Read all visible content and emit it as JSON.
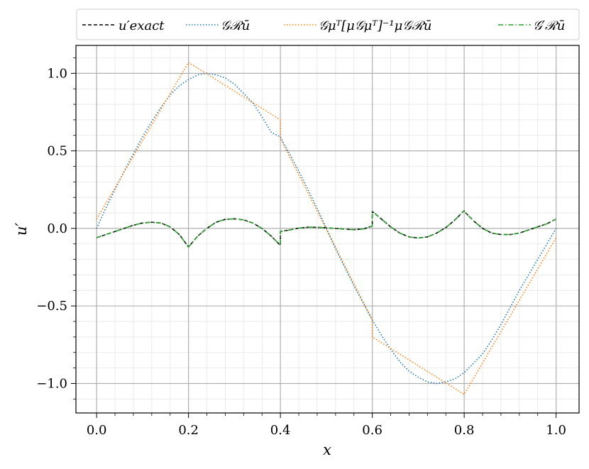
{
  "chart_data": {
    "type": "line",
    "title": "",
    "xlabel": "x",
    "ylabel": "u′",
    "xlim": [
      -0.045,
      1.05
    ],
    "ylim": [
      -1.19,
      1.18
    ],
    "grid": {
      "major": true,
      "minor": true
    },
    "legend_position": "top",
    "xticks": [
      0.0,
      0.2,
      0.4,
      0.6,
      0.8,
      1.0
    ],
    "xtick_labels": [
      "0.0",
      "0.2",
      "0.4",
      "0.6",
      "0.8",
      "1.0"
    ],
    "yticks": [
      -1.0,
      -0.5,
      0.0,
      0.5,
      1.0
    ],
    "ytick_labels": [
      "−1.0",
      "−0.5",
      "0.0",
      "0.5",
      "1.0"
    ],
    "colors": {
      "exact": "#000000",
      "GRu": "#1f77b4",
      "projected": "#ff7f0e",
      "Gprime": "#2ca02c"
    },
    "series": [
      {
        "name": "u′exact",
        "key": "exact",
        "style": "dashed",
        "x": [
          0.0,
          0.02,
          0.04,
          0.06,
          0.08,
          0.1,
          0.12,
          0.14,
          0.16,
          0.18,
          0.2,
          0.2,
          0.22,
          0.24,
          0.26,
          0.28,
          0.3,
          0.32,
          0.34,
          0.36,
          0.38,
          0.4,
          0.4,
          0.42,
          0.44,
          0.46,
          0.48,
          0.5,
          0.52,
          0.54,
          0.56,
          0.58,
          0.6,
          0.6,
          0.62,
          0.64,
          0.66,
          0.68,
          0.7,
          0.72,
          0.74,
          0.76,
          0.78,
          0.8,
          0.8,
          0.82,
          0.84,
          0.86,
          0.88,
          0.9,
          0.92,
          0.94,
          0.96,
          0.98,
          1.0
        ],
        "y": [
          -0.06,
          -0.04,
          -0.02,
          0.0,
          0.02,
          0.035,
          0.04,
          0.035,
          0.01,
          -0.04,
          -0.12,
          -0.12,
          -0.05,
          0.0,
          0.04,
          0.058,
          0.062,
          0.055,
          0.035,
          0.0,
          -0.05,
          -0.11,
          -0.02,
          -0.01,
          0.002,
          0.008,
          0.007,
          0.004,
          0.0,
          -0.005,
          -0.008,
          -0.004,
          0.015,
          0.11,
          0.06,
          0.01,
          -0.03,
          -0.055,
          -0.062,
          -0.055,
          -0.03,
          0.005,
          0.055,
          0.115,
          0.11,
          0.05,
          0.0,
          -0.03,
          -0.04,
          -0.04,
          -0.03,
          -0.01,
          0.01,
          0.03,
          0.06
        ]
      },
      {
        "name": "𝒢ℛū",
        "key": "GRu",
        "style": "dotted",
        "x": [
          0.0,
          0.02,
          0.04,
          0.06,
          0.08,
          0.1,
          0.12,
          0.14,
          0.16,
          0.18,
          0.2,
          0.22,
          0.24,
          0.26,
          0.28,
          0.3,
          0.32,
          0.34,
          0.36,
          0.38,
          0.4,
          0.42,
          0.44,
          0.46,
          0.48,
          0.5,
          0.52,
          0.54,
          0.56,
          0.58,
          0.6,
          0.62,
          0.64,
          0.66,
          0.68,
          0.7,
          0.72,
          0.74,
          0.76,
          0.78,
          0.8,
          0.82,
          0.84,
          0.86,
          0.88,
          0.9,
          0.92,
          0.94,
          0.96,
          0.98,
          1.0
        ],
        "y": [
          0.0,
          0.13,
          0.25,
          0.37,
          0.48,
          0.59,
          0.69,
          0.78,
          0.86,
          0.92,
          0.96,
          0.99,
          1.0,
          0.99,
          0.97,
          0.93,
          0.87,
          0.81,
          0.72,
          0.62,
          0.59,
          0.48,
          0.37,
          0.25,
          0.13,
          0.0,
          -0.13,
          -0.25,
          -0.37,
          -0.48,
          -0.59,
          -0.69,
          -0.78,
          -0.86,
          -0.92,
          -0.96,
          -0.99,
          -1.0,
          -0.99,
          -0.97,
          -0.93,
          -0.87,
          -0.81,
          -0.72,
          -0.62,
          -0.51,
          -0.4,
          -0.3,
          -0.2,
          -0.1,
          0.0
        ]
      },
      {
        "name": "𝒢μᵀ[μ𝒢μᵀ]⁻¹μ𝒢ℛū",
        "key": "projected",
        "style": "dotted",
        "x": [
          0.0,
          0.2,
          0.2,
          0.4,
          0.4,
          0.6,
          0.6,
          0.8,
          0.8,
          1.0
        ],
        "y": [
          0.06,
          1.07,
          1.07,
          0.7,
          0.58,
          -0.59,
          -0.7,
          -1.07,
          -1.07,
          -0.06
        ]
      },
      {
        "name": "𝒢′ℛū",
        "key": "Gprime",
        "style": "dashdot",
        "x": [
          0.0,
          0.02,
          0.04,
          0.06,
          0.08,
          0.1,
          0.12,
          0.14,
          0.16,
          0.18,
          0.2,
          0.2,
          0.22,
          0.24,
          0.26,
          0.28,
          0.3,
          0.32,
          0.34,
          0.36,
          0.38,
          0.4,
          0.4,
          0.42,
          0.44,
          0.46,
          0.48,
          0.5,
          0.52,
          0.54,
          0.56,
          0.58,
          0.6,
          0.6,
          0.62,
          0.64,
          0.66,
          0.68,
          0.7,
          0.72,
          0.74,
          0.76,
          0.78,
          0.8,
          0.8,
          0.82,
          0.84,
          0.86,
          0.88,
          0.9,
          0.92,
          0.94,
          0.96,
          0.98,
          1.0
        ],
        "y": [
          -0.06,
          -0.04,
          -0.02,
          0.0,
          0.02,
          0.035,
          0.04,
          0.035,
          0.01,
          -0.04,
          -0.12,
          -0.12,
          -0.05,
          0.0,
          0.04,
          0.058,
          0.062,
          0.055,
          0.035,
          0.0,
          -0.05,
          -0.11,
          -0.02,
          -0.01,
          0.002,
          0.008,
          0.007,
          0.004,
          0.0,
          -0.005,
          -0.008,
          -0.004,
          0.015,
          0.11,
          0.06,
          0.01,
          -0.03,
          -0.055,
          -0.062,
          -0.055,
          -0.03,
          0.005,
          0.055,
          0.115,
          0.11,
          0.05,
          0.0,
          -0.03,
          -0.04,
          -0.04,
          -0.03,
          -0.01,
          0.01,
          0.03,
          0.06
        ]
      }
    ]
  }
}
